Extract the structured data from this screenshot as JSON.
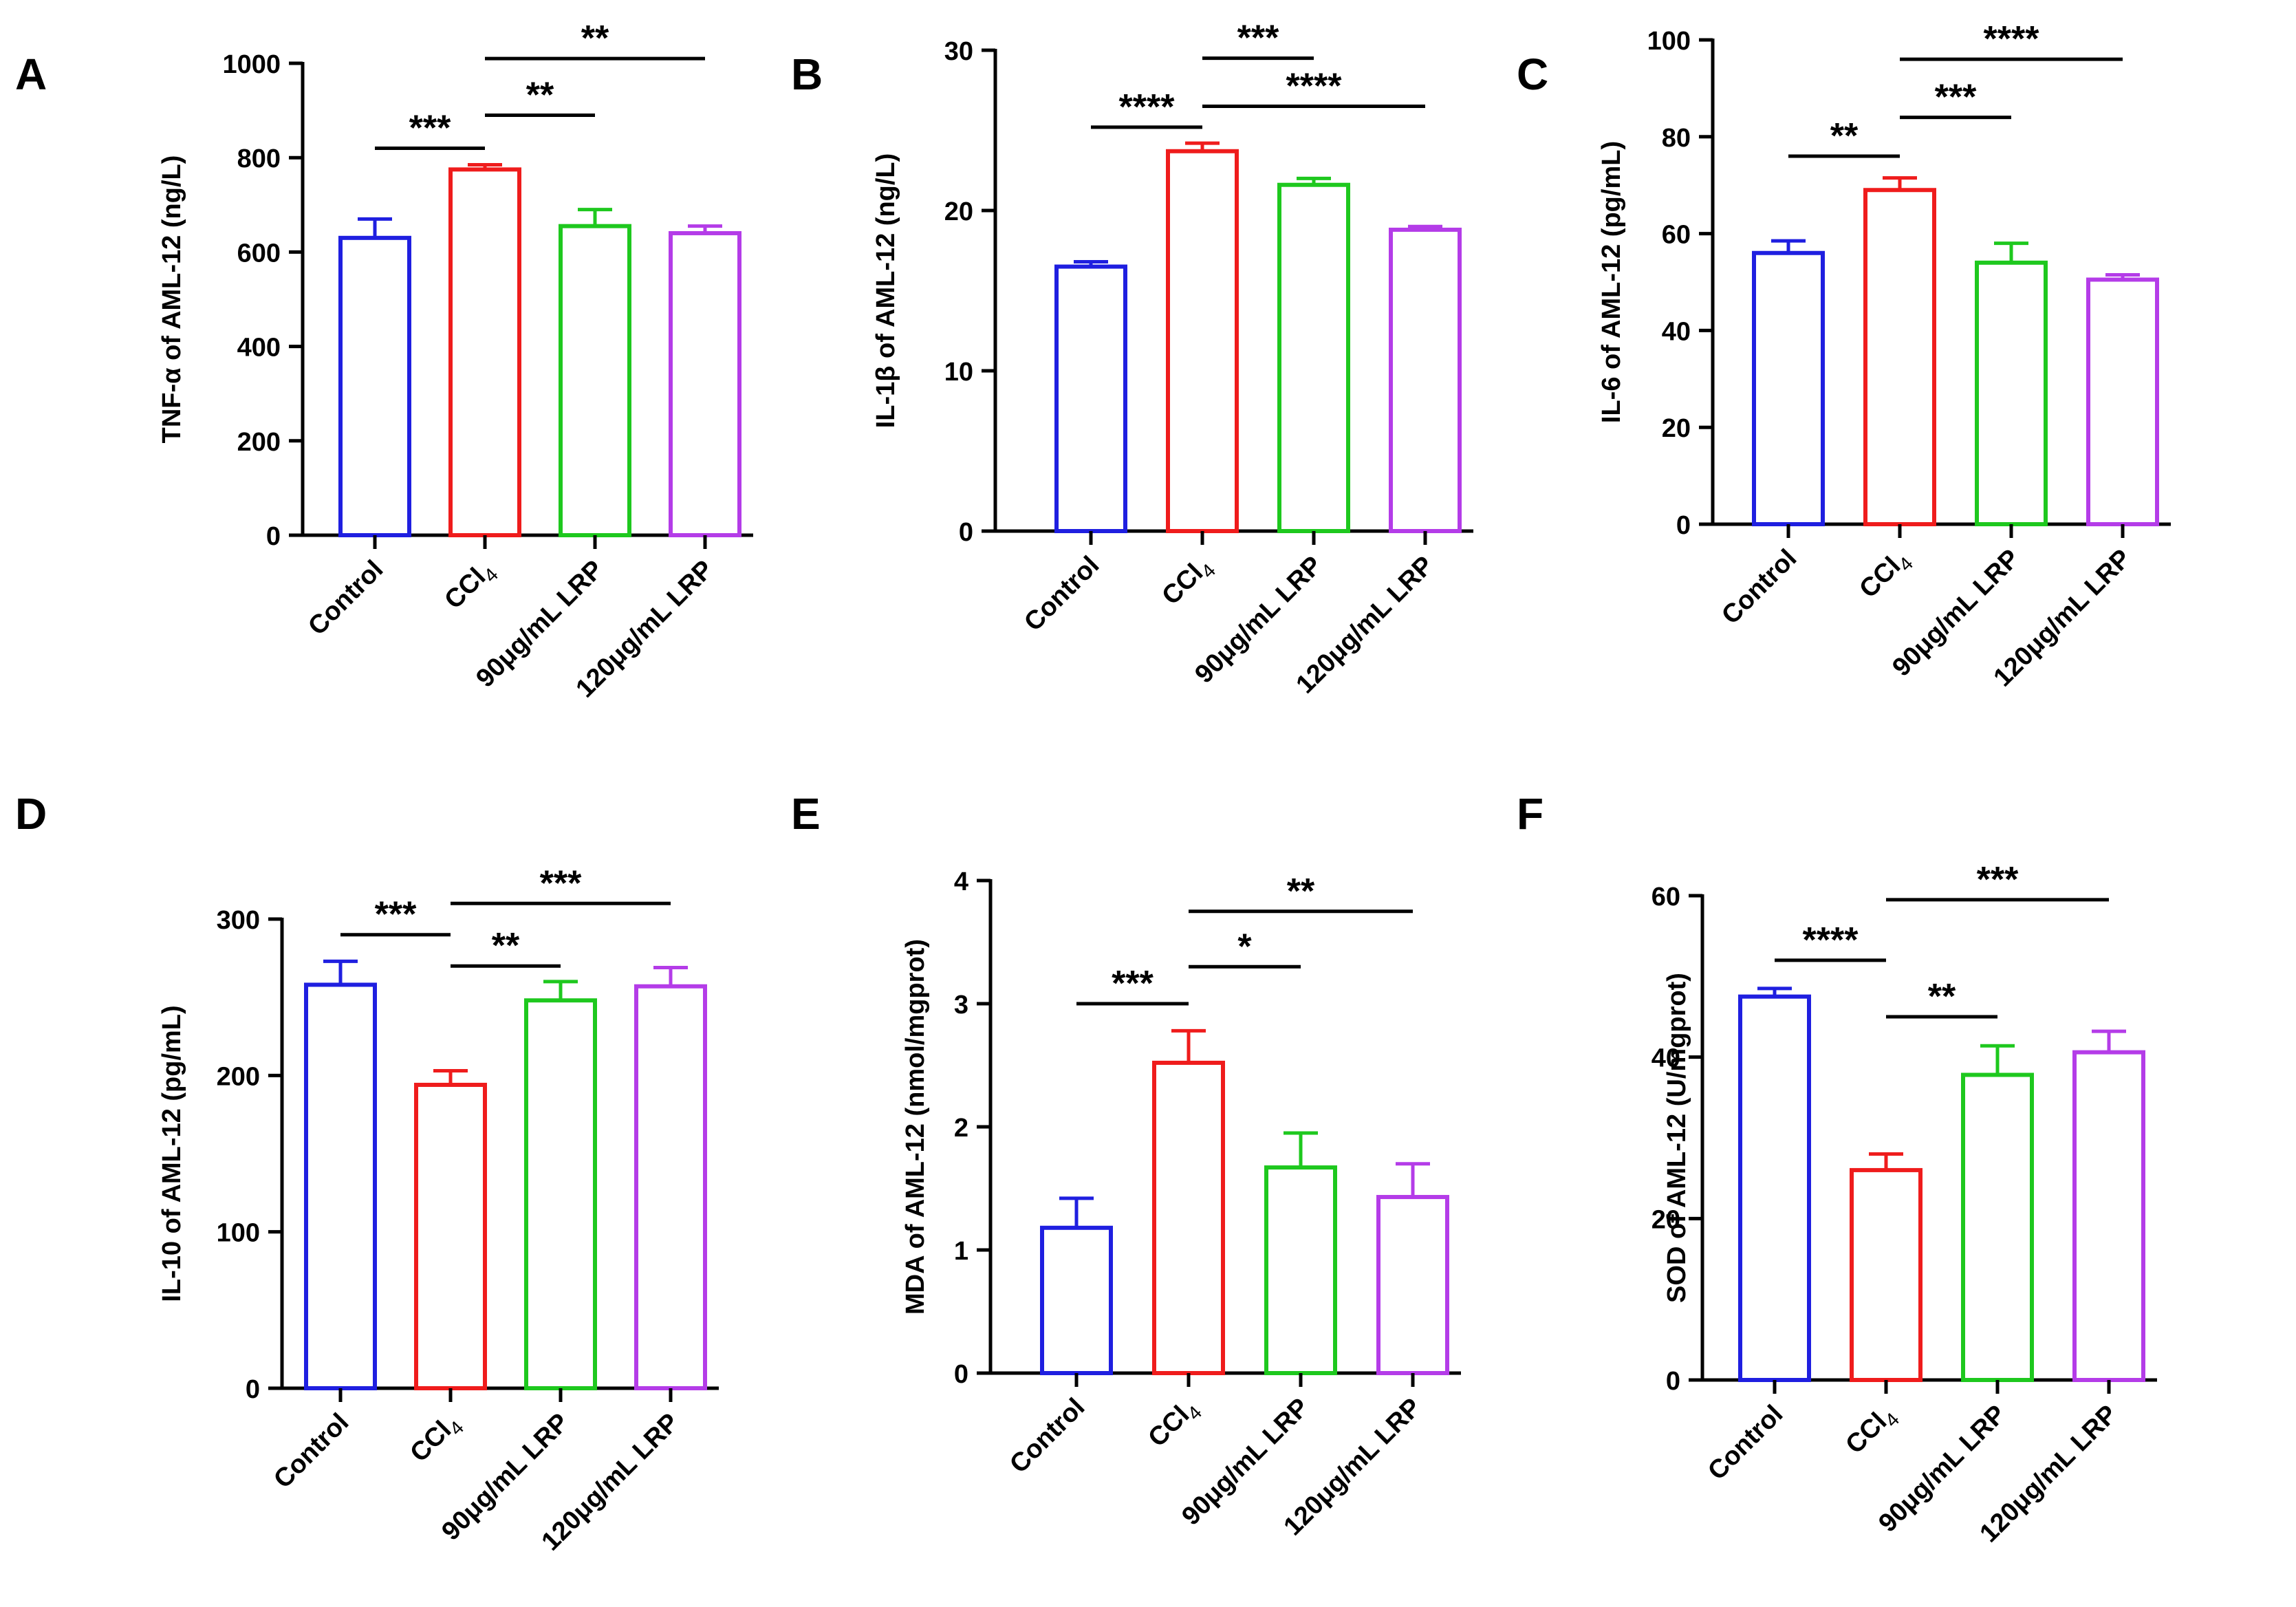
{
  "chart_data": [
    {
      "type": "bar",
      "panel_label": "A",
      "ylabel": "TNF-α of AML-12 (ng/L)",
      "ylim": [
        0,
        1000
      ],
      "yticks": [
        "0",
        "200",
        "400",
        "600",
        "800",
        "1000"
      ],
      "categories": [
        "Control",
        "CCl4",
        "90μg/mL LRP",
        "120μg/mL LRP"
      ],
      "values": [
        630,
        775,
        655,
        640
      ],
      "errors": [
        40,
        10,
        35,
        15
      ],
      "colors": [
        "#1f1fe0",
        "#ef1c1c",
        "#1ec81e",
        "#b43ce8"
      ],
      "significance": [
        {
          "from": 0,
          "to": 1,
          "label": "***",
          "y": 820
        },
        {
          "from": 1,
          "to": 2,
          "label": "**",
          "y": 890
        },
        {
          "from": 1,
          "to": 3,
          "label": "**",
          "y": 1010
        }
      ]
    },
    {
      "type": "bar",
      "panel_label": "B",
      "ylabel": "IL-1β of AML-12 (ng/L)",
      "ylim": [
        0,
        30
      ],
      "yticks": [
        "0",
        "10",
        "20",
        "30"
      ],
      "categories": [
        "Control",
        "CCl4",
        "90μg/mL LRP",
        "120μg/mL LRP"
      ],
      "values": [
        16.5,
        23.7,
        21.6,
        18.8
      ],
      "errors": [
        0.3,
        0.5,
        0.4,
        0.2
      ],
      "colors": [
        "#1f1fe0",
        "#ef1c1c",
        "#1ec81e",
        "#b43ce8"
      ],
      "significance": [
        {
          "from": 0,
          "to": 1,
          "label": "****",
          "y": 25.2
        },
        {
          "from": 1,
          "to": 2,
          "label": "***",
          "y": 29.5
        },
        {
          "from": 1,
          "to": 3,
          "label": "****",
          "y": 26.5
        }
      ]
    },
    {
      "type": "bar",
      "panel_label": "C",
      "ylabel": "IL-6 of AML-12 (pg/mL)",
      "ylim": [
        0,
        100
      ],
      "yticks": [
        "0",
        "20",
        "40",
        "60",
        "80",
        "100"
      ],
      "categories": [
        "Control",
        "CCl4",
        "90μg/mL LRP",
        "120μg/mL LRP"
      ],
      "values": [
        56,
        69,
        54,
        50.5
      ],
      "errors": [
        2.5,
        2.5,
        4,
        1
      ],
      "colors": [
        "#1f1fe0",
        "#ef1c1c",
        "#1ec81e",
        "#b43ce8"
      ],
      "significance": [
        {
          "from": 0,
          "to": 1,
          "label": "**",
          "y": 76
        },
        {
          "from": 1,
          "to": 2,
          "label": "***",
          "y": 84
        },
        {
          "from": 1,
          "to": 3,
          "label": "****",
          "y": 96
        }
      ]
    },
    {
      "type": "bar",
      "panel_label": "D",
      "ylabel": "IL-10 of AML-12 (pg/mL)",
      "ylim": [
        0,
        300
      ],
      "yticks": [
        "0",
        "100",
        "200",
        "300"
      ],
      "categories": [
        "Control",
        "CCl4",
        "90μg/mL LRP",
        "120μg/mL LRP"
      ],
      "values": [
        258,
        194,
        248,
        257
      ],
      "errors": [
        15,
        9,
        12,
        12
      ],
      "colors": [
        "#1f1fe0",
        "#ef1c1c",
        "#1ec81e",
        "#b43ce8"
      ],
      "significance": [
        {
          "from": 0,
          "to": 1,
          "label": "***",
          "y": 290
        },
        {
          "from": 1,
          "to": 2,
          "label": "**",
          "y": 270
        },
        {
          "from": 1,
          "to": 3,
          "label": "***",
          "y": 310
        }
      ]
    },
    {
      "type": "bar",
      "panel_label": "E",
      "ylabel": "MDA of AML-12 (nmol/mgprot)",
      "ylim": [
        0,
        4
      ],
      "yticks": [
        "0",
        "1",
        "2",
        "3",
        "4"
      ],
      "categories": [
        "Control",
        "CCl4",
        "90μg/mL LRP",
        "120μg/mL LRP"
      ],
      "values": [
        1.18,
        2.52,
        1.67,
        1.43
      ],
      "errors": [
        0.24,
        0.26,
        0.28,
        0.27
      ],
      "colors": [
        "#1f1fe0",
        "#ef1c1c",
        "#1ec81e",
        "#b43ce8"
      ],
      "significance": [
        {
          "from": 0,
          "to": 1,
          "label": "***",
          "y": 3.0
        },
        {
          "from": 1,
          "to": 2,
          "label": "*",
          "y": 3.3
        },
        {
          "from": 1,
          "to": 3,
          "label": "**",
          "y": 3.75
        }
      ]
    },
    {
      "type": "bar",
      "panel_label": "F",
      "ylabel": "SOD of AML-12 (U/mgprot)",
      "ylim": [
        0,
        60
      ],
      "yticks": [
        "0",
        "20",
        "40",
        "60"
      ],
      "categories": [
        "Control",
        "CCl4",
        "90μg/mL LRP",
        "120μg/mL LRP"
      ],
      "values": [
        47.5,
        26,
        37.8,
        40.6
      ],
      "errors": [
        1,
        2,
        3.6,
        2.6
      ],
      "colors": [
        "#1f1fe0",
        "#ef1c1c",
        "#1ec81e",
        "#b43ce8"
      ],
      "significance": [
        {
          "from": 0,
          "to": 1,
          "label": "****",
          "y": 52
        },
        {
          "from": 1,
          "to": 2,
          "label": "**",
          "y": 45
        },
        {
          "from": 1,
          "to": 3,
          "label": "***",
          "y": 59.5
        }
      ]
    }
  ]
}
